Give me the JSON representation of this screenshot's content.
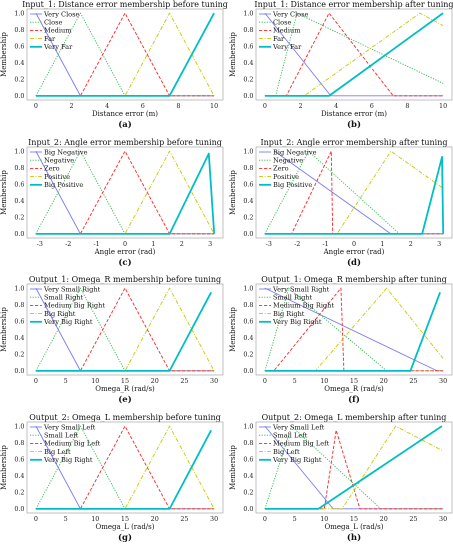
{
  "figure": {
    "colors": {
      "blue": "#7b7bf0",
      "green": "#2cb84a",
      "red": "#ff2222",
      "yellow": "#c8c800",
      "cyan": "#00bfc4"
    }
  },
  "chart_data": [
    {
      "type": "line",
      "panel_label": "(a)",
      "title": "Input_1: Distance error membership before tuning",
      "xlabel": "Distance error (m)",
      "ylabel": "Membership",
      "xlim": [
        -0.5,
        10.5
      ],
      "ylim": [
        -0.05,
        1.05
      ],
      "xticks": [
        0,
        2,
        4,
        6,
        8,
        10
      ],
      "yticks": [
        0.0,
        0.2,
        0.4,
        0.6,
        0.8,
        1.0
      ],
      "legend_position": "top-left",
      "series": [
        {
          "name": "Very Close",
          "color": "#7b7bf0",
          "style": "solid",
          "x": [
            0,
            2.5,
            10
          ],
          "y": [
            1,
            0,
            0
          ]
        },
        {
          "name": "Close",
          "color": "#2cb84a",
          "style": "dotted",
          "x": [
            0,
            2.5,
            5,
            10
          ],
          "y": [
            0,
            1,
            0,
            0
          ]
        },
        {
          "name": "Medium",
          "color": "#ff2222",
          "style": "dashed",
          "x": [
            0,
            2.5,
            5,
            7.5,
            10
          ],
          "y": [
            0,
            0,
            1,
            0,
            0
          ]
        },
        {
          "name": "Far",
          "color": "#c8c800",
          "style": "dashdot",
          "x": [
            0,
            5,
            7.5,
            10
          ],
          "y": [
            0,
            0,
            1,
            0
          ]
        },
        {
          "name": "Very Far",
          "color": "#00bfc4",
          "style": "thick",
          "x": [
            0,
            7.5,
            10
          ],
          "y": [
            0,
            0,
            1
          ]
        }
      ]
    },
    {
      "type": "line",
      "panel_label": "(b)",
      "title": "Input_1: Distance error membership after tuning",
      "xlabel": "Distance error (m)",
      "ylabel": "Membership",
      "xlim": [
        -0.5,
        10.5
      ],
      "ylim": [
        -0.05,
        1.05
      ],
      "xticks": [
        0,
        2,
        4,
        6,
        8,
        10
      ],
      "yticks": [
        0.0,
        0.2,
        0.4,
        0.6,
        0.8,
        1.0
      ],
      "legend_position": "top-left",
      "series": [
        {
          "name": "Very Close",
          "color": "#7b7bf0",
          "style": "solid",
          "x": [
            0,
            3.7,
            10
          ],
          "y": [
            1,
            0,
            0
          ]
        },
        {
          "name": "Close",
          "color": "#2cb84a",
          "style": "dotted",
          "x": [
            0,
            0.6,
            1.8,
            10
          ],
          "y": [
            0,
            0,
            1,
            0.15
          ]
        },
        {
          "name": "Medium",
          "color": "#ff2222",
          "style": "dashed",
          "x": [
            0,
            1.2,
            3.6,
            7.2,
            10
          ],
          "y": [
            0,
            0,
            1,
            0,
            0
          ]
        },
        {
          "name": "Far",
          "color": "#c8c800",
          "style": "dashdot",
          "x": [
            0,
            2.2,
            8.7,
            10
          ],
          "y": [
            0,
            0,
            1,
            0.85
          ]
        },
        {
          "name": "Very Far",
          "color": "#00bfc4",
          "style": "thick",
          "x": [
            0,
            3.6,
            10
          ],
          "y": [
            0,
            0,
            1
          ]
        }
      ]
    },
    {
      "type": "line",
      "panel_label": "(c)",
      "title": "Input_2: Angle error membership before tuning",
      "xlabel": "Angle error (rad)",
      "ylabel": "Membership",
      "xlim": [
        -3.45,
        3.45
      ],
      "ylim": [
        -0.05,
        1.05
      ],
      "xticks": [
        -3,
        -2,
        -1,
        0,
        1,
        2,
        3
      ],
      "yticks": [
        0.0,
        0.2,
        0.4,
        0.6,
        0.8,
        1.0
      ],
      "legend_position": "top-left",
      "series": [
        {
          "name": "Big Negative",
          "color": "#7b7bf0",
          "style": "solid",
          "x": [
            -3.14,
            -1.57,
            3.14
          ],
          "y": [
            1,
            0,
            0
          ]
        },
        {
          "name": "Negative",
          "color": "#2cb84a",
          "style": "dotted",
          "x": [
            -3.14,
            -1.57,
            0,
            3.14
          ],
          "y": [
            0,
            1,
            0,
            0
          ]
        },
        {
          "name": "Zero",
          "color": "#ff2222",
          "style": "dashed",
          "x": [
            -3.14,
            -1.57,
            0,
            1.57,
            3.14
          ],
          "y": [
            0,
            0,
            1,
            0,
            0
          ]
        },
        {
          "name": "Positive",
          "color": "#c8c800",
          "style": "dashdot",
          "x": [
            -3.14,
            0,
            1.57,
            3.14
          ],
          "y": [
            0,
            0,
            1,
            0
          ]
        },
        {
          "name": "Big Positive",
          "color": "#00bfc4",
          "style": "thick",
          "x": [
            -3.14,
            1.57,
            2.95,
            3.14
          ],
          "y": [
            0,
            0,
            0.97,
            0
          ]
        }
      ]
    },
    {
      "type": "line",
      "panel_label": "(d)",
      "title": "Input_2: Angle error membership after tuning",
      "xlabel": "Angle error (rad)",
      "ylabel": "Membership",
      "xlim": [
        -3.45,
        3.45
      ],
      "ylim": [
        -0.05,
        1.05
      ],
      "xticks": [
        -3,
        -2,
        -1,
        0,
        1,
        2,
        3
      ],
      "yticks": [
        0.0,
        0.2,
        0.4,
        0.6,
        0.8,
        1.0
      ],
      "legend_position": "top-left",
      "series": [
        {
          "name": "Big Negative",
          "color": "#7b7bf0",
          "style": "solid",
          "x": [
            -2.8,
            1.3,
            3.14
          ],
          "y": [
            1,
            0,
            0
          ]
        },
        {
          "name": "Negative",
          "color": "#2cb84a",
          "style": "dotted",
          "x": [
            -3.14,
            -1.6,
            1.6,
            3.14
          ],
          "y": [
            0,
            1,
            0,
            0
          ]
        },
        {
          "name": "Zero",
          "color": "#ff2222",
          "style": "dashed",
          "x": [
            -3.14,
            -2.2,
            -0.8,
            -0.75,
            3.14
          ],
          "y": [
            0,
            0,
            1,
            0,
            0
          ]
        },
        {
          "name": "Positive",
          "color": "#c8c800",
          "style": "dashdot",
          "x": [
            -3.14,
            -0.6,
            1.3,
            3.14
          ],
          "y": [
            0,
            0,
            1,
            0.55
          ]
        },
        {
          "name": "Big Positive",
          "color": "#00bfc4",
          "style": "thick",
          "x": [
            -3.14,
            2.4,
            3.1,
            3.14
          ],
          "y": [
            0,
            0,
            0.93,
            0
          ]
        }
      ]
    },
    {
      "type": "line",
      "panel_label": "(e)",
      "title": "Output_1: Omega_R membership before tuning",
      "xlabel": "Omega_R (rad/s)",
      "ylabel": "Membership",
      "xlim": [
        -1.5,
        31.5
      ],
      "ylim": [
        -0.05,
        1.05
      ],
      "xticks": [
        0,
        5,
        10,
        15,
        20,
        25,
        30
      ],
      "yticks": [
        0.0,
        0.2,
        0.4,
        0.6,
        0.8,
        1.0
      ],
      "legend_position": "top-left",
      "series": [
        {
          "name": "Very Small Right",
          "color": "#7b7bf0",
          "style": "solid",
          "x": [
            0,
            7.5,
            30
          ],
          "y": [
            1,
            0,
            0
          ]
        },
        {
          "name": "Small Right",
          "color": "#2cb84a",
          "style": "dotted",
          "x": [
            0,
            7.5,
            15,
            30
          ],
          "y": [
            0,
            1,
            0,
            0
          ]
        },
        {
          "name": "Medium Big Right",
          "color": "#ff2222",
          "style": "dashed",
          "x": [
            0,
            7.5,
            15,
            22.5,
            30
          ],
          "y": [
            0,
            0,
            1,
            0,
            0
          ]
        },
        {
          "name": "Big Right",
          "color": "#c8c800",
          "style": "dashdot",
          "x": [
            0,
            15,
            22.5,
            30
          ],
          "y": [
            0,
            0,
            1,
            0
          ]
        },
        {
          "name": "Very Big Right",
          "color": "#00bfc4",
          "style": "thick",
          "x": [
            0,
            22.5,
            29.5
          ],
          "y": [
            0,
            0,
            0.95
          ]
        }
      ]
    },
    {
      "type": "line",
      "panel_label": "(f)",
      "title": "Output_1: Omega_R membership after tuning",
      "xlabel": "Omega_R (rad/s)",
      "ylabel": "Membership",
      "xlim": [
        -1.5,
        31.5
      ],
      "ylim": [
        -0.05,
        1.05
      ],
      "xticks": [
        0,
        5,
        10,
        15,
        20,
        25,
        30
      ],
      "yticks": [
        0.0,
        0.2,
        0.4,
        0.6,
        0.8,
        1.0
      ],
      "legend_position": "top-left",
      "series": [
        {
          "name": "Very Small Right",
          "color": "#7b7bf0",
          "style": "solid",
          "x": [
            0,
            29,
            30
          ],
          "y": [
            1,
            0,
            0
          ]
        },
        {
          "name": "Small Right",
          "color": "#2cb84a",
          "style": "dotted",
          "x": [
            0,
            4,
            20.5,
            30
          ],
          "y": [
            0,
            1,
            0,
            0
          ]
        },
        {
          "name": "Medium Big Right",
          "color": "#ff2222",
          "style": "dashed",
          "x": [
            0,
            1.5,
            12.8,
            13.3,
            30
          ],
          "y": [
            0,
            0,
            1,
            0,
            0
          ]
        },
        {
          "name": "Big Right",
          "color": "#c8c800",
          "style": "dashdot",
          "x": [
            0,
            8.5,
            20.5,
            30
          ],
          "y": [
            0,
            0,
            1,
            0.15
          ]
        },
        {
          "name": "Very Big Right",
          "color": "#00bfc4",
          "style": "thick",
          "x": [
            0,
            24.5,
            29.5
          ],
          "y": [
            0,
            0,
            0.95
          ]
        }
      ]
    },
    {
      "type": "line",
      "panel_label": "(g)",
      "title": "Output_2: Omega_L membership before tuning",
      "xlabel": "Omega_L (rad/s)",
      "ylabel": "Membership",
      "xlim": [
        -1.5,
        31.5
      ],
      "ylim": [
        -0.05,
        1.05
      ],
      "xticks": [
        0,
        5,
        10,
        15,
        20,
        25,
        30
      ],
      "yticks": [
        0.0,
        0.2,
        0.4,
        0.6,
        0.8,
        1.0
      ],
      "legend_position": "top-left",
      "series": [
        {
          "name": "Very Small Left",
          "color": "#7b7bf0",
          "style": "solid",
          "x": [
            0,
            7.5,
            30
          ],
          "y": [
            1,
            0,
            0
          ]
        },
        {
          "name": "Small Left",
          "color": "#2cb84a",
          "style": "dotted",
          "x": [
            0,
            7.5,
            15,
            30
          ],
          "y": [
            0,
            1,
            0,
            0
          ]
        },
        {
          "name": "Medium Big Left",
          "color": "#ff2222",
          "style": "dashed",
          "x": [
            0,
            7.5,
            15,
            22.5,
            30
          ],
          "y": [
            0,
            0,
            1,
            0,
            0
          ]
        },
        {
          "name": "Big Left",
          "color": "#c8c800",
          "style": "dashdot",
          "x": [
            0,
            15,
            22.5,
            30
          ],
          "y": [
            0,
            0,
            1,
            0
          ]
        },
        {
          "name": "Very Big Right",
          "color": "#00bfc4",
          "style": "thick",
          "x": [
            0,
            22.5,
            29.5
          ],
          "y": [
            0,
            0,
            0.95
          ]
        }
      ]
    },
    {
      "type": "line",
      "panel_label": "(h)",
      "title": "Output_2: Omega_L membership after tuning",
      "xlabel": "Omega_L (rad/s)",
      "ylabel": "Membership",
      "xlim": [
        -1.5,
        31.5
      ],
      "ylim": [
        -0.05,
        1.05
      ],
      "xticks": [
        0,
        5,
        10,
        15,
        20,
        25,
        30
      ],
      "yticks": [
        0.0,
        0.2,
        0.4,
        0.6,
        0.8,
        1.0
      ],
      "legend_position": "top-left",
      "series": [
        {
          "name": "Very Small Left",
          "color": "#7b7bf0",
          "style": "solid",
          "x": [
            0,
            11.5,
            30
          ],
          "y": [
            1,
            0,
            0
          ]
        },
        {
          "name": "Small Left",
          "color": "#2cb84a",
          "style": "dotted",
          "x": [
            0,
            4.5,
            19.5,
            30
          ],
          "y": [
            0,
            1,
            0,
            0
          ]
        },
        {
          "name": "Medium Big Left",
          "color": "#ff2222",
          "style": "dashed",
          "x": [
            0,
            10,
            12,
            16,
            30
          ],
          "y": [
            0,
            0,
            0.95,
            0,
            0
          ]
        },
        {
          "name": "Big Left",
          "color": "#c8c800",
          "style": "dashdot",
          "x": [
            0,
            13,
            22,
            30
          ],
          "y": [
            0,
            0,
            1,
            0.7
          ]
        },
        {
          "name": "Very Big Right",
          "color": "#00bfc4",
          "style": "thick",
          "x": [
            0,
            9,
            29.8
          ],
          "y": [
            0,
            0,
            1
          ]
        }
      ]
    }
  ]
}
